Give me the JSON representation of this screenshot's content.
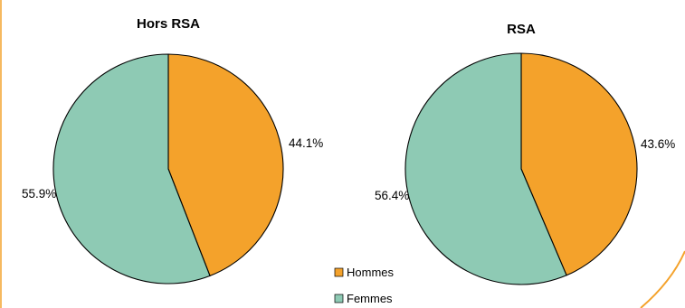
{
  "colors": {
    "hommes": "#F4A22B",
    "femmes": "#8ECAB4",
    "edge": "#000000",
    "frame_accent": "#F4A22B"
  },
  "legend": [
    {
      "label": "Hommes",
      "color": "#F4A22B"
    },
    {
      "label": "Femmes",
      "color": "#8ECAB4"
    }
  ],
  "chart_data": [
    {
      "type": "pie",
      "title": "Hors RSA",
      "categories": [
        "Hommes",
        "Femmes"
      ],
      "values": [
        44.1,
        55.9
      ],
      "labels": [
        "44.1%",
        "55.9%"
      ]
    },
    {
      "type": "pie",
      "title": "RSA",
      "categories": [
        "Hommes",
        "Femmes"
      ],
      "values": [
        43.6,
        56.4
      ],
      "labels": [
        "43.6%",
        "56.4%"
      ]
    }
  ]
}
